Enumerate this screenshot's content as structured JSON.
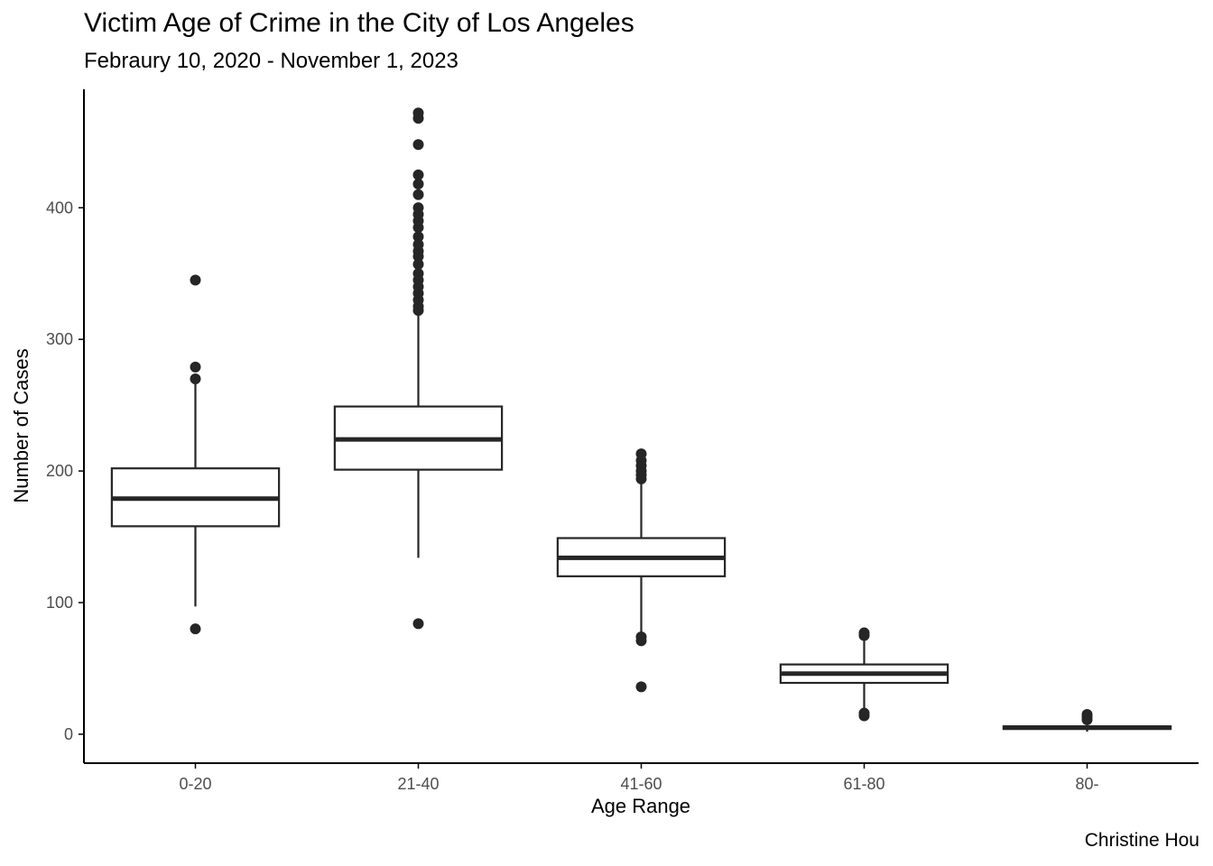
{
  "chart_data": {
    "type": "boxplot",
    "title": "Victim Age of Crime in the City of Los Angeles",
    "subtitle": "Febraury 10, 2020 - November 1, 2023",
    "caption": "Christine Hou",
    "xlabel": "Age Range",
    "ylabel": "Number of Cases",
    "ylim": [
      -22,
      490
    ],
    "yticks": [
      0,
      100,
      200,
      300,
      400
    ],
    "grid": false,
    "legend": "none",
    "categories": [
      "0-20",
      "21-40",
      "41-60",
      "61-80",
      "80-"
    ],
    "boxes": [
      {
        "category": "0-20",
        "whisker_low": 97,
        "q1": 158,
        "median": 179,
        "q3": 202,
        "whisker_high": 268,
        "outliers": [
          80,
          270,
          279,
          345
        ]
      },
      {
        "category": "21-40",
        "whisker_low": 134,
        "q1": 201,
        "median": 224,
        "q3": 249,
        "whisker_high": 320,
        "outliers": [
          84,
          322,
          325,
          330,
          335,
          340,
          345,
          350,
          357,
          363,
          367,
          372,
          378,
          385,
          390,
          395,
          400,
          410,
          418,
          425,
          448,
          468,
          472
        ]
      },
      {
        "category": "41-60",
        "whisker_low": 77,
        "q1": 120,
        "median": 134,
        "q3": 149,
        "whisker_high": 192,
        "outliers": [
          36,
          71,
          74,
          194,
          197,
          200,
          204,
          208,
          213
        ]
      },
      {
        "category": "61-80",
        "whisker_low": 19,
        "q1": 39,
        "median": 46,
        "q3": 53,
        "whisker_high": 72,
        "outliers": [
          14,
          16,
          75,
          77
        ]
      },
      {
        "category": "80-",
        "whisker_low": 2,
        "q1": 4,
        "median": 5,
        "q3": 6,
        "whisker_high": 9,
        "outliers": [
          11,
          13,
          15
        ]
      }
    ],
    "colors": {
      "line": "#262626",
      "point": "#262626",
      "axis": "#000000",
      "tick_label": "#4d4d4d"
    }
  }
}
